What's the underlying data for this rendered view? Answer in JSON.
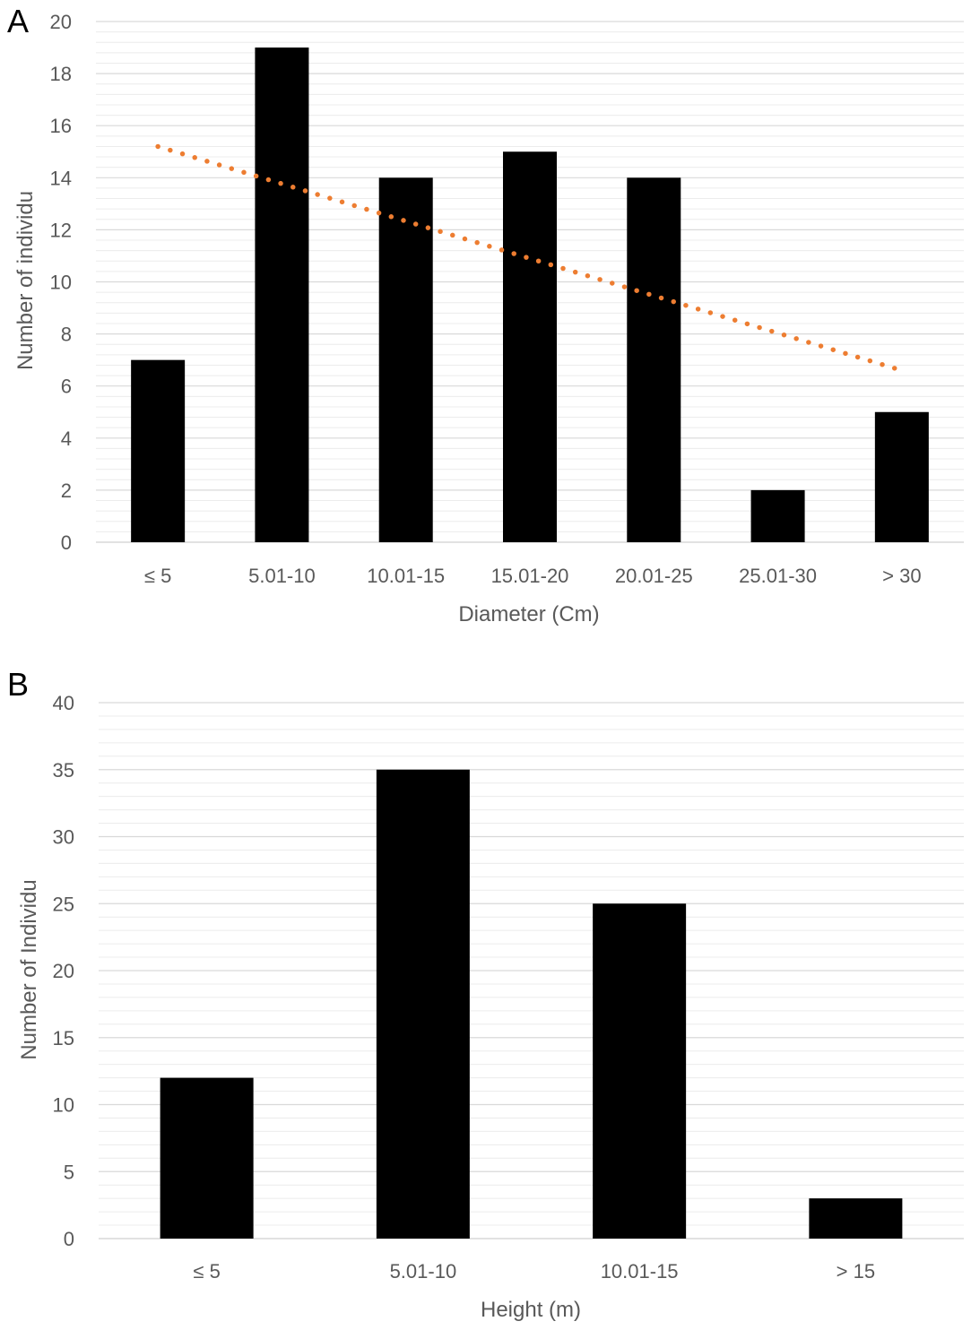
{
  "chart_data": [
    {
      "panel": "A",
      "type": "bar",
      "categories": [
        "≤ 5",
        "5.01-10",
        "10.01-15",
        "15.01-20",
        "20.01-25",
        "25.01-30",
        "> 30"
      ],
      "values": [
        7,
        19,
        14,
        15,
        14,
        2,
        5
      ],
      "xlabel": "Diameter (Cm)",
      "ylabel": "Number of individu",
      "ylim": [
        0,
        20
      ],
      "yticks": [
        0,
        2,
        4,
        6,
        8,
        10,
        12,
        14,
        16,
        18,
        20
      ],
      "grid": true,
      "trendline": {
        "type": "linear",
        "style": "dotted",
        "start": 15.2,
        "end": 6.6
      },
      "colors": {
        "bar": "#000000",
        "trendline": "#ed7d31",
        "grid": "#d9d9d9",
        "text": "#595959"
      }
    },
    {
      "panel": "B",
      "type": "bar",
      "categories": [
        "≤ 5",
        "5.01-10",
        "10.01-15",
        "> 15"
      ],
      "values": [
        12,
        35,
        25,
        3
      ],
      "xlabel": "Height (m)",
      "ylabel": "Number of Individu",
      "ylim": [
        0,
        40
      ],
      "yticks": [
        0,
        5,
        10,
        15,
        20,
        25,
        30,
        35,
        40
      ],
      "grid": true,
      "colors": {
        "bar": "#000000",
        "grid": "#d9d9d9",
        "text": "#595959"
      }
    }
  ]
}
